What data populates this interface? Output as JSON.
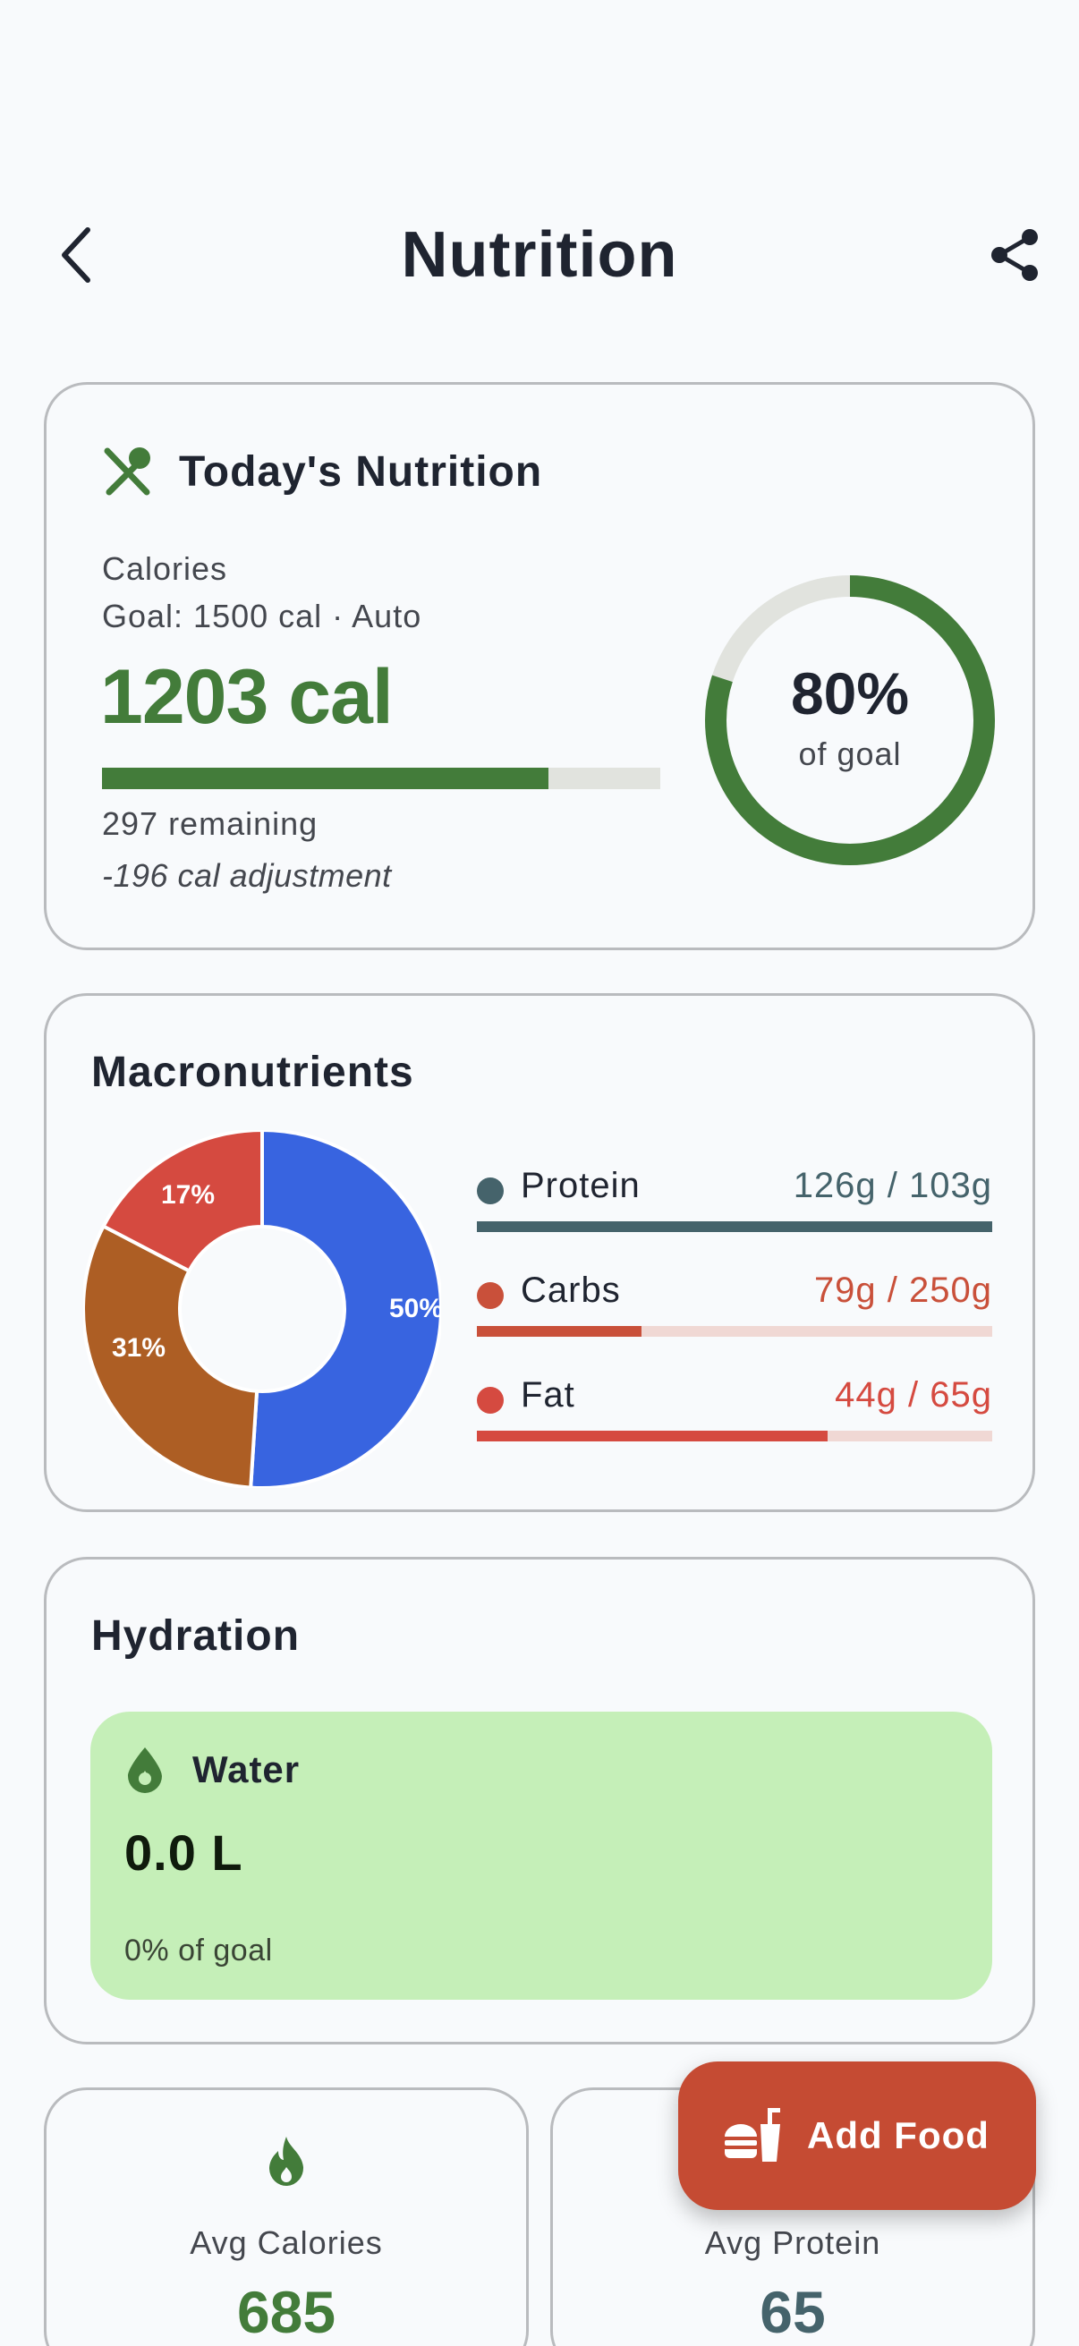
{
  "header": {
    "title": "Nutrition"
  },
  "today": {
    "title": "Today's Nutrition",
    "calories_label": "Calories",
    "goal_label": "Goal: 1500 cal · Auto",
    "calories_value": "1203 cal",
    "progress_fraction": 0.8,
    "remaining": "297 remaining",
    "adjustment": "-196 cal adjustment",
    "ring_percent": "80%",
    "ring_sub": "of goal",
    "accent_color": "#437c3a"
  },
  "macros": {
    "title": "Macronutrients",
    "chart_labels": [
      "50%",
      "31%",
      "17%"
    ],
    "slices": [
      {
        "name": "protein",
        "percent": 50,
        "color": "#3864e0"
      },
      {
        "name": "carbs",
        "percent": 31,
        "color": "#ad5e24"
      },
      {
        "name": "fat",
        "percent": 17,
        "color": "#d54a40"
      }
    ],
    "rows": [
      {
        "name": "Protein",
        "value": "126g / 103g",
        "fill": 1.0,
        "color": "#45636b",
        "track": "#d7dee0"
      },
      {
        "name": "Carbs",
        "value": "79g / 250g",
        "fill": 0.32,
        "color": "#c9503a",
        "track": "#f0d8d4"
      },
      {
        "name": "Fat",
        "value": "44g / 65g",
        "fill": 0.68,
        "color": "#d54a40",
        "track": "#f0d8d4"
      }
    ]
  },
  "hydration": {
    "title": "Hydration",
    "water_label": "Water",
    "water_value": "0.0 L",
    "water_goal": "0% of goal"
  },
  "stats": {
    "avg_calories_label": "Avg Calories",
    "avg_calories_value": "685",
    "avg_protein_label": "Avg Protein",
    "avg_protein_value": "65"
  },
  "fab": {
    "label": "Add Food"
  },
  "icons": {
    "back": "chevron-left-icon",
    "share": "share-icon",
    "utensils": "utensils-icon",
    "water": "water-drop-icon",
    "flame": "flame-icon",
    "food": "fast-food-icon"
  }
}
